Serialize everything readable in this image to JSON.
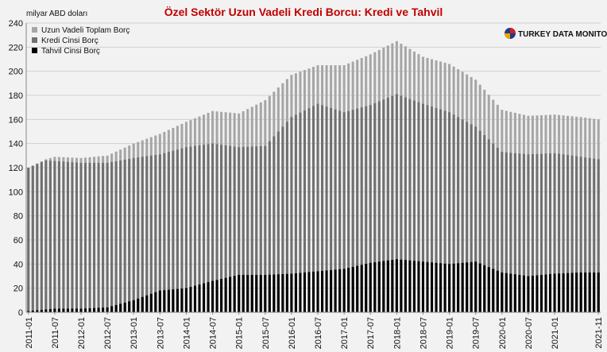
{
  "chart_data": {
    "type": "bar",
    "title": "Özel Sektör Uzun Vadeli Kredi Borcu: Kredi ve Tahvil",
    "ylabel": "milyar ABD doları",
    "xlabel": "",
    "ylim": [
      0,
      240
    ],
    "yticks": [
      0,
      20,
      40,
      60,
      80,
      100,
      120,
      140,
      160,
      180,
      200,
      220,
      240
    ],
    "grid": true,
    "legend_position": "top-left",
    "brand": "TURKEY DATA MONITOR",
    "colors": {
      "total": "#a6a6a6",
      "loan": "#707070",
      "bond": "#000000",
      "title": "#c00000",
      "background": "#f2f2f2",
      "grid": "#d0d0d0"
    },
    "x_tick_labels": [
      "2011-01",
      "2011-07",
      "2012-01",
      "2012-07",
      "2013-01",
      "2013-07",
      "2014-01",
      "2014-07",
      "2015-01",
      "2015-07",
      "2016-01",
      "2016-07",
      "2017-01",
      "2017-07",
      "2018-01",
      "2018-07",
      "2019-01",
      "2019-07",
      "2020-01",
      "2020-07",
      "2021-01",
      "2021-11"
    ],
    "series": [
      {
        "name": "Uzun Vadeli Toplam Borç",
        "key": "total",
        "anchors": [
          [
            0,
            120
          ],
          [
            4,
            127
          ],
          [
            6,
            129
          ],
          [
            12,
            128
          ],
          [
            18,
            130
          ],
          [
            24,
            140
          ],
          [
            30,
            148
          ],
          [
            36,
            158
          ],
          [
            42,
            167
          ],
          [
            48,
            165
          ],
          [
            54,
            176
          ],
          [
            60,
            197
          ],
          [
            66,
            205
          ],
          [
            72,
            205
          ],
          [
            78,
            214
          ],
          [
            84,
            225
          ],
          [
            90,
            212
          ],
          [
            96,
            206
          ],
          [
            102,
            193
          ],
          [
            108,
            168
          ],
          [
            114,
            163
          ],
          [
            120,
            164
          ],
          [
            126,
            162
          ],
          [
            130,
            160
          ]
        ]
      },
      {
        "name": "Kredi Cinsi Borç",
        "key": "loan",
        "anchors": [
          [
            0,
            120
          ],
          [
            4,
            126
          ],
          [
            12,
            124
          ],
          [
            18,
            124
          ],
          [
            24,
            128
          ],
          [
            30,
            131
          ],
          [
            36,
            137
          ],
          [
            42,
            140
          ],
          [
            48,
            137
          ],
          [
            54,
            138
          ],
          [
            60,
            162
          ],
          [
            66,
            173
          ],
          [
            72,
            166
          ],
          [
            78,
            172
          ],
          [
            84,
            181
          ],
          [
            90,
            173
          ],
          [
            96,
            166
          ],
          [
            102,
            154
          ],
          [
            108,
            133
          ],
          [
            114,
            131
          ],
          [
            120,
            132
          ],
          [
            126,
            129
          ],
          [
            130,
            127
          ]
        ]
      },
      {
        "name": "Tahvil Cinsi Borç",
        "key": "bond",
        "anchors": [
          [
            0,
            1
          ],
          [
            6,
            3
          ],
          [
            12,
            3
          ],
          [
            18,
            4
          ],
          [
            24,
            10
          ],
          [
            30,
            18
          ],
          [
            36,
            20
          ],
          [
            42,
            26
          ],
          [
            48,
            31
          ],
          [
            54,
            31
          ],
          [
            60,
            32
          ],
          [
            66,
            34
          ],
          [
            72,
            36
          ],
          [
            78,
            41
          ],
          [
            84,
            44
          ],
          [
            90,
            42
          ],
          [
            96,
            40
          ],
          [
            102,
            42
          ],
          [
            108,
            33
          ],
          [
            114,
            30
          ],
          [
            120,
            32
          ],
          [
            126,
            33
          ],
          [
            130,
            33
          ]
        ]
      }
    ],
    "period_count": 131,
    "period_start": "2011-01",
    "period_end": "2021-11"
  }
}
